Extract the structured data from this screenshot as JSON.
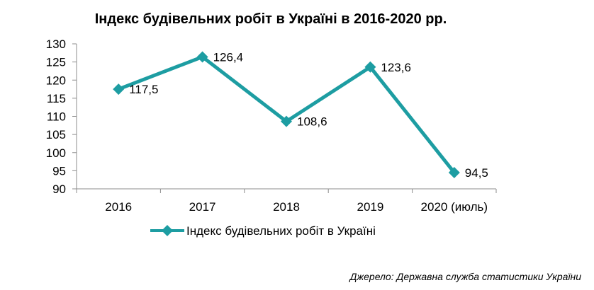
{
  "chart_data": {
    "type": "line",
    "title": "Індекс будівельних робіт в Україні в 2016-2020 рр.",
    "categories": [
      "2016",
      "2017",
      "2018",
      "2019",
      "2020 (июль)"
    ],
    "series": [
      {
        "name": "Індекс будівельних робіт в Україні",
        "values": [
          117.5,
          126.4,
          108.6,
          123.6,
          94.5
        ],
        "data_labels": [
          "117,5",
          "126,4",
          "108,6",
          "123,6",
          "94,5"
        ],
        "color": "#1d9da2",
        "marker": "diamond"
      }
    ],
    "ylim": [
      90,
      130
    ],
    "yticks": [
      90,
      95,
      100,
      105,
      110,
      115,
      120,
      125,
      130
    ],
    "xlabel": "",
    "ylabel": "",
    "grid": false,
    "legend_position": "bottom"
  },
  "source": "Джерело: Державна служба статистики України"
}
